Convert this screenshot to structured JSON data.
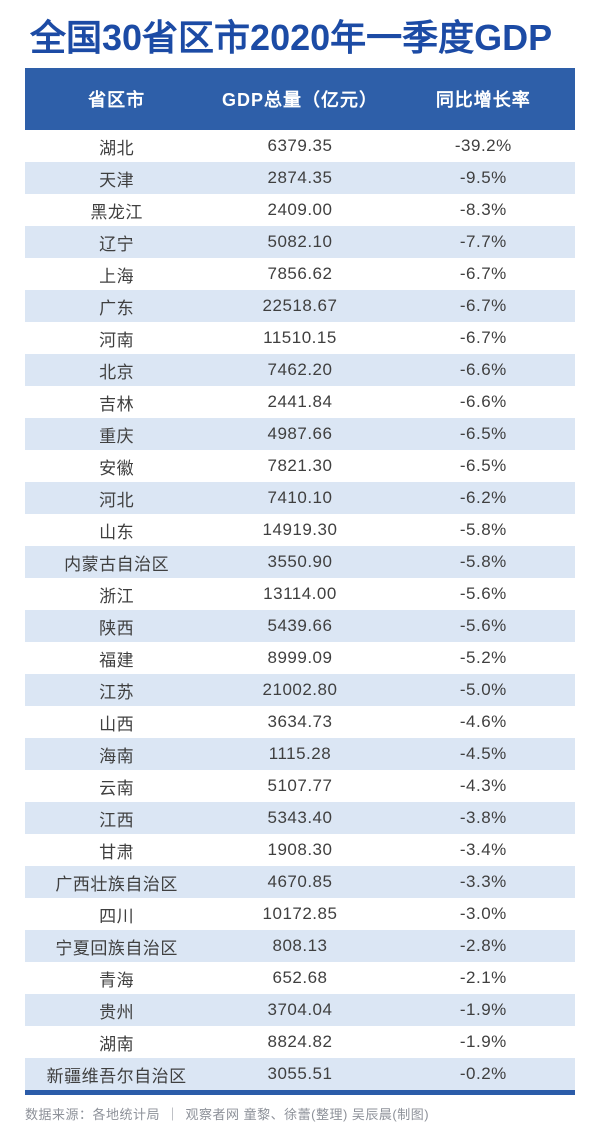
{
  "title": "全国30省区市2020年一季度GDP",
  "colors": {
    "title_text": "#1c4ba5",
    "header_bg": "#2e5fa9",
    "header_text": "#ffffff",
    "stripe_bg": "#dbe6f4",
    "row_text": "#3f3f3f",
    "bottom_rule": "#2b5ca9",
    "footer_text": "#8d9199"
  },
  "table": {
    "columns": [
      "省区市",
      "GDP总量（亿元）",
      "同比增长率"
    ],
    "rows": [
      {
        "province": "湖北",
        "gdp": "6379.35",
        "growth": "-39.2%"
      },
      {
        "province": "天津",
        "gdp": "2874.35",
        "growth": "-9.5%"
      },
      {
        "province": "黑龙江",
        "gdp": "2409.00",
        "growth": "-8.3%"
      },
      {
        "province": "辽宁",
        "gdp": "5082.10",
        "growth": "-7.7%"
      },
      {
        "province": "上海",
        "gdp": "7856.62",
        "growth": "-6.7%"
      },
      {
        "province": "广东",
        "gdp": "22518.67",
        "growth": "-6.7%"
      },
      {
        "province": "河南",
        "gdp": "11510.15",
        "growth": "-6.7%"
      },
      {
        "province": "北京",
        "gdp": "7462.20",
        "growth": "-6.6%"
      },
      {
        "province": "吉林",
        "gdp": "2441.84",
        "growth": "-6.6%"
      },
      {
        "province": "重庆",
        "gdp": "4987.66",
        "growth": "-6.5%"
      },
      {
        "province": "安徽",
        "gdp": "7821.30",
        "growth": "-6.5%"
      },
      {
        "province": "河北",
        "gdp": "7410.10",
        "growth": "-6.2%"
      },
      {
        "province": "山东",
        "gdp": "14919.30",
        "growth": "-5.8%"
      },
      {
        "province": "内蒙古自治区",
        "gdp": "3550.90",
        "growth": "-5.8%"
      },
      {
        "province": "浙江",
        "gdp": "13114.00",
        "growth": "-5.6%"
      },
      {
        "province": "陕西",
        "gdp": "5439.66",
        "growth": "-5.6%"
      },
      {
        "province": "福建",
        "gdp": "8999.09",
        "growth": "-5.2%"
      },
      {
        "province": "江苏",
        "gdp": "21002.80",
        "growth": "-5.0%"
      },
      {
        "province": "山西",
        "gdp": "3634.73",
        "growth": "-4.6%"
      },
      {
        "province": "海南",
        "gdp": "1115.28",
        "growth": "-4.5%"
      },
      {
        "province": "云南",
        "gdp": "5107.77",
        "growth": "-4.3%"
      },
      {
        "province": "江西",
        "gdp": "5343.40",
        "growth": "-3.8%"
      },
      {
        "province": "甘肃",
        "gdp": "1908.30",
        "growth": "-3.4%"
      },
      {
        "province": "广西壮族自治区",
        "gdp": "4670.85",
        "growth": "-3.3%"
      },
      {
        "province": "四川",
        "gdp": "10172.85",
        "growth": "-3.0%"
      },
      {
        "province": "宁夏回族自治区",
        "gdp": "808.13",
        "growth": "-2.8%"
      },
      {
        "province": "青海",
        "gdp": "652.68",
        "growth": "-2.1%"
      },
      {
        "province": "贵州",
        "gdp": "3704.04",
        "growth": "-1.9%"
      },
      {
        "province": "湖南",
        "gdp": "8824.82",
        "growth": "-1.9%"
      },
      {
        "province": "新疆维吾尔自治区",
        "gdp": "3055.51",
        "growth": "-0.2%"
      }
    ]
  },
  "footer": {
    "source": "数据来源：各地统计局",
    "separator": "｜",
    "credits": "观察者网 童黎、徐蕾(整理) 吴辰晨(制图)"
  },
  "chart_data": {
    "type": "table",
    "title": "全国30省区市2020年一季度GDP",
    "columns": [
      "省区市",
      "GDP总量（亿元）",
      "同比增长率"
    ],
    "rows": [
      [
        "湖北",
        6379.35,
        -39.2
      ],
      [
        "天津",
        2874.35,
        -9.5
      ],
      [
        "黑龙江",
        2409.0,
        -8.3
      ],
      [
        "辽宁",
        5082.1,
        -7.7
      ],
      [
        "上海",
        7856.62,
        -6.7
      ],
      [
        "广东",
        22518.67,
        -6.7
      ],
      [
        "河南",
        11510.15,
        -6.7
      ],
      [
        "北京",
        7462.2,
        -6.6
      ],
      [
        "吉林",
        2441.84,
        -6.6
      ],
      [
        "重庆",
        4987.66,
        -6.5
      ],
      [
        "安徽",
        7821.3,
        -6.5
      ],
      [
        "河北",
        7410.1,
        -6.2
      ],
      [
        "山东",
        14919.3,
        -5.8
      ],
      [
        "内蒙古自治区",
        3550.9,
        -5.8
      ],
      [
        "浙江",
        13114.0,
        -5.6
      ],
      [
        "陕西",
        5439.66,
        -5.6
      ],
      [
        "福建",
        8999.09,
        -5.2
      ],
      [
        "江苏",
        21002.8,
        -5.0
      ],
      [
        "山西",
        3634.73,
        -4.6
      ],
      [
        "海南",
        1115.28,
        -4.5
      ],
      [
        "云南",
        5107.77,
        -4.3
      ],
      [
        "江西",
        5343.4,
        -3.8
      ],
      [
        "甘肃",
        1908.3,
        -3.4
      ],
      [
        "广西壮族自治区",
        4670.85,
        -3.3
      ],
      [
        "四川",
        10172.85,
        -3.0
      ],
      [
        "宁夏回族自治区",
        808.13,
        -2.8
      ],
      [
        "青海",
        652.68,
        -2.1
      ],
      [
        "贵州",
        3704.04,
        -1.9
      ],
      [
        "湖南",
        8824.82,
        -1.9
      ],
      [
        "新疆维吾尔自治区",
        3055.51,
        -0.2
      ]
    ],
    "growth_unit": "%",
    "gdp_unit": "亿元"
  }
}
